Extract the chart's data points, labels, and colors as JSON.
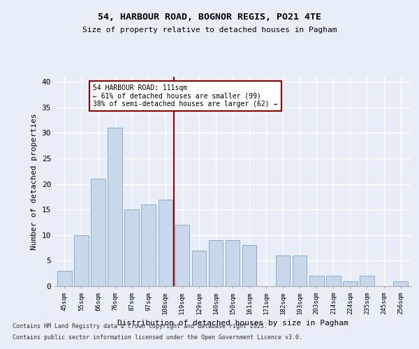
{
  "title1": "54, HARBOUR ROAD, BOGNOR REGIS, PO21 4TE",
  "title2": "Size of property relative to detached houses in Pagham",
  "xlabel": "Distribution of detached houses by size in Pagham",
  "ylabel": "Number of detached properties",
  "categories": [
    "45sqm",
    "55sqm",
    "66sqm",
    "76sqm",
    "87sqm",
    "97sqm",
    "108sqm",
    "119sqm",
    "129sqm",
    "140sqm",
    "150sqm",
    "161sqm",
    "171sqm",
    "182sqm",
    "193sqm",
    "203sqm",
    "214sqm",
    "224sqm",
    "235sqm",
    "245sqm",
    "256sqm"
  ],
  "values": [
    3,
    10,
    21,
    31,
    15,
    16,
    17,
    12,
    7,
    9,
    9,
    8,
    0,
    6,
    6,
    2,
    2,
    1,
    2,
    0,
    1
  ],
  "bar_color": "#c8d8ea",
  "bar_edge_color": "#8aafc8",
  "reference_line_index": 6.5,
  "annotation_text": "54 HARBOUR ROAD: 111sqm\n← 61% of detached houses are smaller (99)\n38% of semi-detached houses are larger (62) →",
  "ylim": [
    0,
    41
  ],
  "yticks": [
    0,
    5,
    10,
    15,
    20,
    25,
    30,
    35,
    40
  ],
  "background_color": "#e8eef8",
  "grid_color": "#ffffff",
  "footer1": "Contains HM Land Registry data © Crown copyright and database right 2025.",
  "footer2": "Contains public sector information licensed under the Open Government Licence v3.0."
}
